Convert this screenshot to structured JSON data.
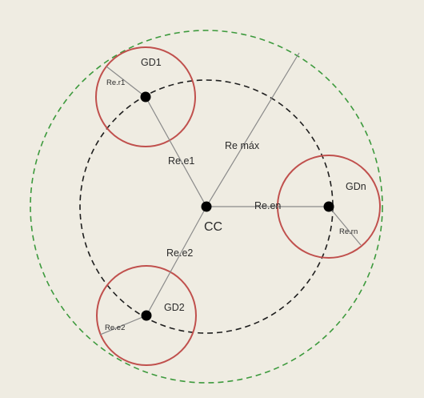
{
  "labels": {
    "gd1": "GD1",
    "gd2": "GD2",
    "gdn": "GDn",
    "cc": "CC",
    "re_r1": "Re.r1",
    "re_e1": "Re.e1",
    "re_e2": "Re.e2",
    "re_max": "Re máx",
    "re_en": "Re.en",
    "re_rn": "Re.rn",
    "re_e2_small": "Re.e2"
  },
  "colors": {
    "background": "#efece2",
    "outer_circle": "#3d9a3d",
    "inner_circle": "#1e1e1e",
    "gd_circle": "#c0504d",
    "lines": "#8a8a8a",
    "nodes": "#000000"
  }
}
